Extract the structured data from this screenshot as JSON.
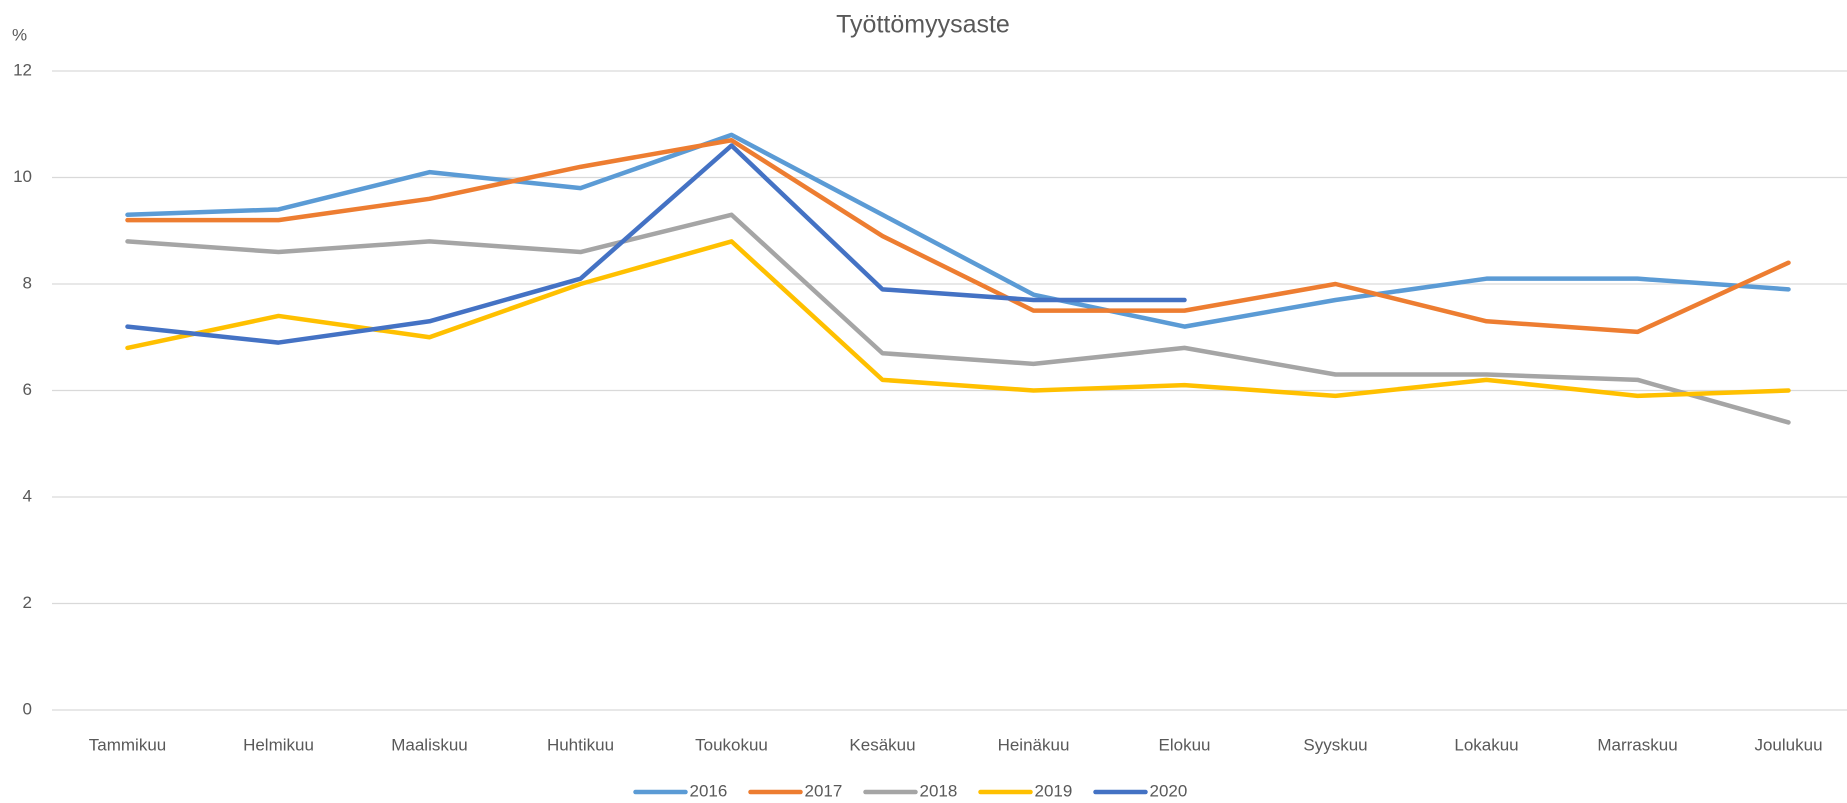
{
  "chart_data": {
    "type": "line",
    "title": "Työttömyysaste",
    "ylabel": "%",
    "categories": [
      "Tammikuu",
      "Helmikuu",
      "Maaliskuu",
      "Huhtikuu",
      "Toukokuu",
      "Kesäkuu",
      "Heinäkuu",
      "Elokuu",
      "Syyskuu",
      "Lokakuu",
      "Marraskuu",
      "Joulukuu"
    ],
    "series": [
      {
        "name": "2016",
        "color": "#5b9bd5",
        "values": [
          9.3,
          9.4,
          10.1,
          9.8,
          10.8,
          9.3,
          7.8,
          7.2,
          7.7,
          8.1,
          8.1,
          7.9
        ]
      },
      {
        "name": "2017",
        "color": "#ed7d31",
        "values": [
          9.2,
          9.2,
          9.6,
          10.2,
          10.7,
          8.9,
          7.5,
          7.5,
          8.0,
          7.3,
          7.1,
          8.4
        ]
      },
      {
        "name": "2018",
        "color": "#a5a5a5",
        "values": [
          8.8,
          8.6,
          8.8,
          8.6,
          9.3,
          6.7,
          6.5,
          6.8,
          6.3,
          6.3,
          6.2,
          5.4
        ]
      },
      {
        "name": "2019",
        "color": "#ffc000",
        "values": [
          6.8,
          7.4,
          7.0,
          8.0,
          8.8,
          6.2,
          6.0,
          6.1,
          5.9,
          6.2,
          5.9,
          6.0
        ]
      },
      {
        "name": "2020",
        "color": "#4472c4",
        "values": [
          7.2,
          6.9,
          7.3,
          8.1,
          10.6,
          7.9,
          7.7,
          7.7,
          null,
          null,
          null,
          null
        ]
      }
    ],
    "ylim": [
      0,
      12
    ],
    "yticks": [
      0,
      2,
      4,
      6,
      8,
      10,
      12
    ],
    "grid": true,
    "legend": "bottom"
  }
}
